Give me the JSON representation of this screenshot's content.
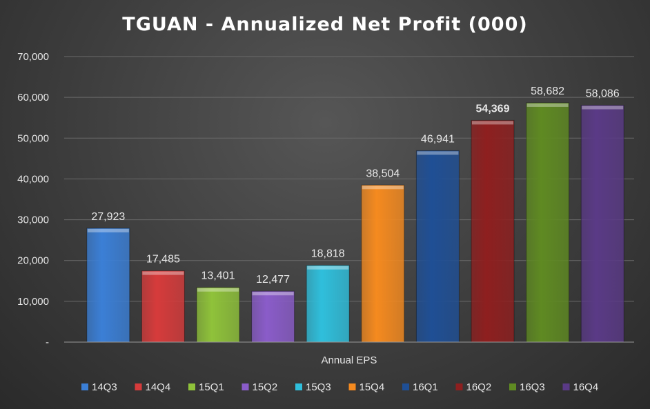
{
  "chart_data": {
    "type": "bar",
    "title": "TGUAN - Annualized Net Profit (000)",
    "xlabel": "Annual EPS",
    "ylabel": "",
    "ylim": [
      0,
      70000
    ],
    "y_ticks": [
      "-",
      "10,000",
      "20,000",
      "30,000",
      "40,000",
      "50,000",
      "60,000",
      "70,000"
    ],
    "grid": true,
    "legend_position": "bottom",
    "series": [
      {
        "name": "14Q3",
        "value": 27923,
        "label": "27,923",
        "color": "#3b7fd6"
      },
      {
        "name": "14Q4",
        "value": 17485,
        "label": "17,485",
        "color": "#d63b3b"
      },
      {
        "name": "15Q1",
        "value": 13401,
        "label": "13,401",
        "color": "#8fc23a"
      },
      {
        "name": "15Q2",
        "value": 12477,
        "label": "12,477",
        "color": "#8a5cc9"
      },
      {
        "name": "15Q3",
        "value": 18818,
        "label": "18,818",
        "color": "#2fbfdc"
      },
      {
        "name": "15Q4",
        "value": 38504,
        "label": "38,504",
        "color": "#f58a1f"
      },
      {
        "name": "16Q1",
        "value": 46941,
        "label": "46,941",
        "color": "#1f4f95"
      },
      {
        "name": "16Q2",
        "value": 54369,
        "label": "54,369",
        "color": "#8e1f1f"
      },
      {
        "name": "16Q3",
        "value": 58682,
        "label": "58,682",
        "color": "#5f8a22"
      },
      {
        "name": "16Q4",
        "value": 58086,
        "label": "58,086",
        "color": "#5a3a86"
      }
    ]
  }
}
